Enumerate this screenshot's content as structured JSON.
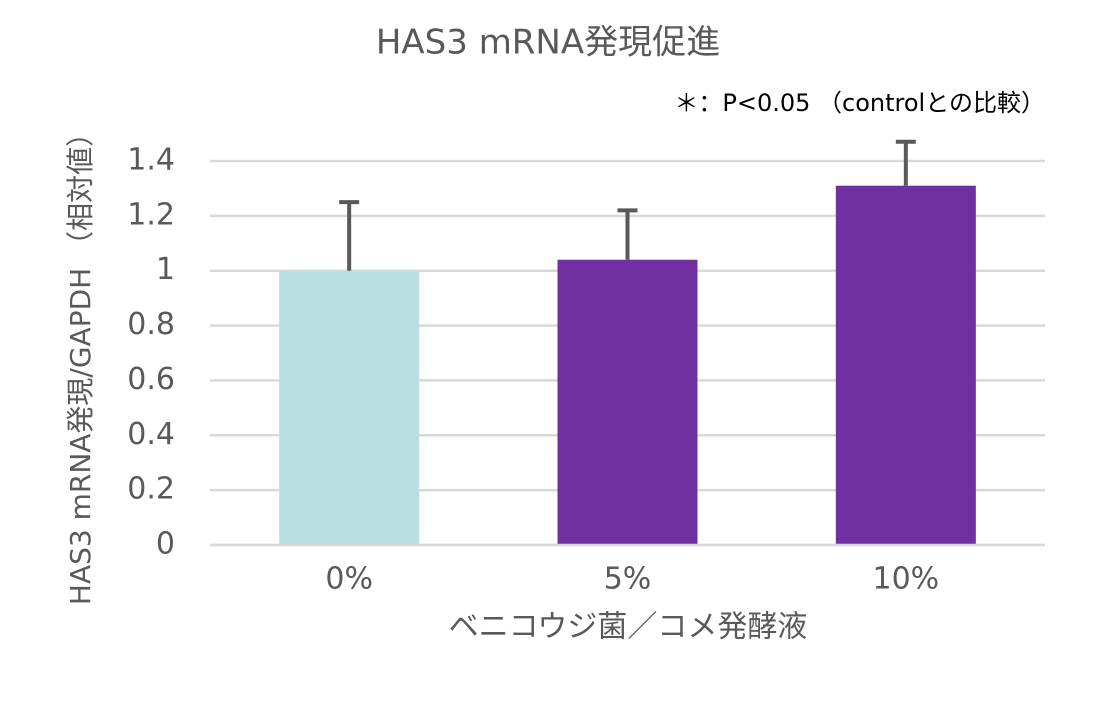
{
  "chart_data": {
    "type": "bar",
    "title": "HAS3 mRNA発現促進",
    "annotation": "＊：P<0.05 （controlとの比較）",
    "x_label": "ベニコウジ菌／コメ発酵液",
    "y_label": "HAS3 mRNA発現/GAPDH （相対値）",
    "categories": [
      "0%",
      "5%",
      "10%"
    ],
    "values": [
      1.0,
      1.04,
      1.31
    ],
    "errors": [
      0.25,
      0.18,
      0.16
    ],
    "colors": [
      "#badfe2",
      "#7030a0",
      "#7030a0"
    ],
    "error_color": "#595959",
    "ylim": [
      0,
      1.4
    ],
    "yticks": [
      0,
      0.2,
      0.4,
      0.6,
      0.8,
      1,
      1.2,
      1.4
    ],
    "grid": true
  }
}
